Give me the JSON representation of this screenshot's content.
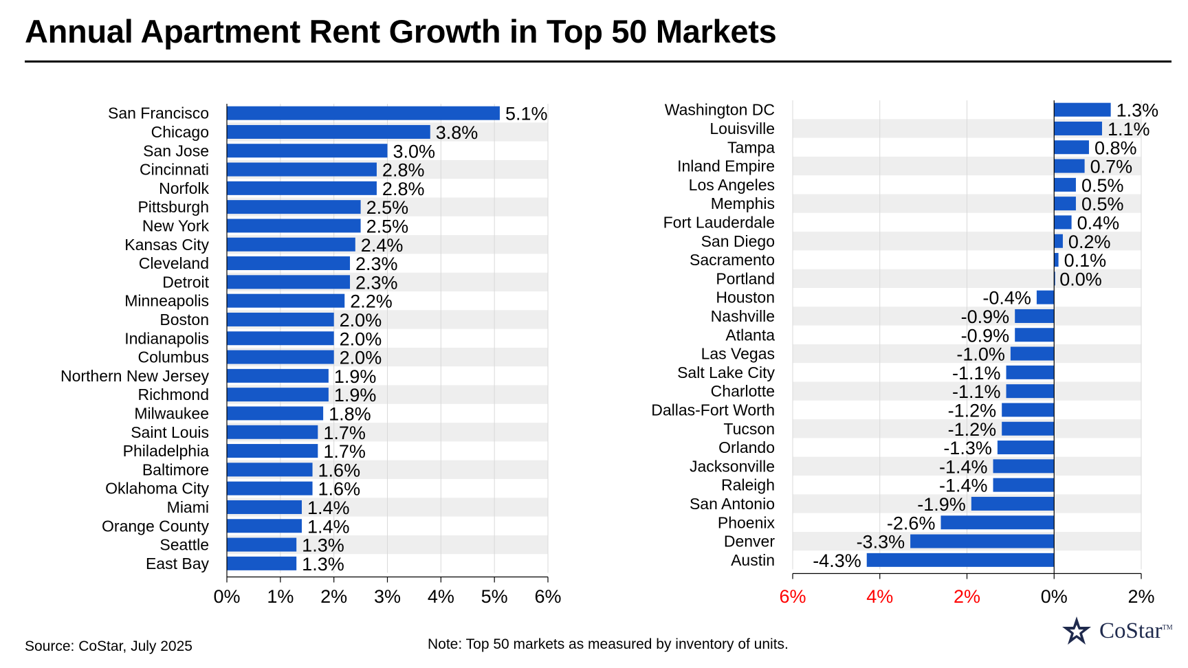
{
  "title": "Annual Apartment Rent Growth in Top 50 Markets",
  "source": "Source: CoStar, July 2025",
  "note": "Note: Top 50 markets as measured by inventory of units.",
  "logo": {
    "text": "CoStar",
    "tm": "TM"
  },
  "colors": {
    "bar": "#1558c8",
    "band": "#eeeeee",
    "negative_tick": "#ff0000",
    "grid": "#d9d9d9"
  },
  "chart_data": [
    {
      "type": "bar",
      "orientation": "horizontal",
      "categories": [
        "San Francisco",
        "Chicago",
        "San Jose",
        "Cincinnati",
        "Norfolk",
        "Pittsburgh",
        "New York",
        "Kansas City",
        "Cleveland",
        "Detroit",
        "Minneapolis",
        "Boston",
        "Indianapolis",
        "Columbus",
        "Northern New Jersey",
        "Richmond",
        "Milwaukee",
        "Saint Louis",
        "Philadelphia",
        "Baltimore",
        "Oklahoma City",
        "Miami",
        "Orange County",
        "Seattle",
        "East Bay"
      ],
      "values": [
        5.1,
        3.8,
        3.0,
        2.8,
        2.8,
        2.5,
        2.5,
        2.4,
        2.3,
        2.3,
        2.2,
        2.0,
        2.0,
        2.0,
        1.9,
        1.9,
        1.8,
        1.7,
        1.7,
        1.6,
        1.6,
        1.4,
        1.4,
        1.3,
        1.3
      ],
      "labels": [
        "5.1%",
        "3.8%",
        "3.0%",
        "2.8%",
        "2.8%",
        "2.5%",
        "2.5%",
        "2.4%",
        "2.3%",
        "2.3%",
        "2.2%",
        "2.0%",
        "2.0%",
        "2.0%",
        "1.9%",
        "1.9%",
        "1.8%",
        "1.7%",
        "1.7%",
        "1.6%",
        "1.6%",
        "1.4%",
        "1.4%",
        "1.3%",
        "1.3%"
      ],
      "xlim": [
        0,
        6
      ],
      "ticks": [
        {
          "value": 0,
          "label": "0%",
          "negative": false
        },
        {
          "value": 1,
          "label": "1%",
          "negative": false
        },
        {
          "value": 2,
          "label": "2%",
          "negative": false
        },
        {
          "value": 3,
          "label": "3%",
          "negative": false
        },
        {
          "value": 4,
          "label": "4%",
          "negative": false
        },
        {
          "value": 5,
          "label": "5%",
          "negative": false
        },
        {
          "value": 6,
          "label": "6%",
          "negative": false
        }
      ],
      "unit": "%"
    },
    {
      "type": "bar",
      "orientation": "horizontal",
      "categories": [
        "Washington DC",
        "Louisville",
        "Tampa",
        "Inland Empire",
        "Los Angeles",
        "Memphis",
        "Fort Lauderdale",
        "San Diego",
        "Sacramento",
        "Portland",
        "Houston",
        "Nashville",
        "Atlanta",
        "Las Vegas",
        "Salt Lake City",
        "Charlotte",
        "Dallas-Fort Worth",
        "Tucson",
        "Orlando",
        "Jacksonville",
        "Raleigh",
        "San Antonio",
        "Phoenix",
        "Denver",
        "Austin"
      ],
      "values": [
        1.3,
        1.1,
        0.8,
        0.7,
        0.5,
        0.5,
        0.4,
        0.2,
        0.1,
        0.0,
        -0.4,
        -0.9,
        -0.9,
        -1.0,
        -1.1,
        -1.1,
        -1.2,
        -1.2,
        -1.3,
        -1.4,
        -1.4,
        -1.9,
        -2.6,
        -3.3,
        -4.3
      ],
      "labels": [
        "1.3%",
        "1.1%",
        "0.8%",
        "0.7%",
        "0.5%",
        "0.5%",
        "0.4%",
        "0.2%",
        "0.1%",
        "0.0%",
        "-0.4%",
        "-0.9%",
        "-0.9%",
        "-1.0%",
        "-1.1%",
        "-1.1%",
        "-1.2%",
        "-1.2%",
        "-1.3%",
        "-1.4%",
        "-1.4%",
        "-1.9%",
        "-2.6%",
        "-3.3%",
        "-4.3%"
      ],
      "xlim": [
        -6,
        2
      ],
      "ticks": [
        {
          "value": -6,
          "label": "6%",
          "negative": true
        },
        {
          "value": -4,
          "label": "4%",
          "negative": true
        },
        {
          "value": -2,
          "label": "2%",
          "negative": true
        },
        {
          "value": 0,
          "label": "0%",
          "negative": false
        },
        {
          "value": 2,
          "label": "2%",
          "negative": false
        }
      ],
      "unit": "%"
    }
  ]
}
